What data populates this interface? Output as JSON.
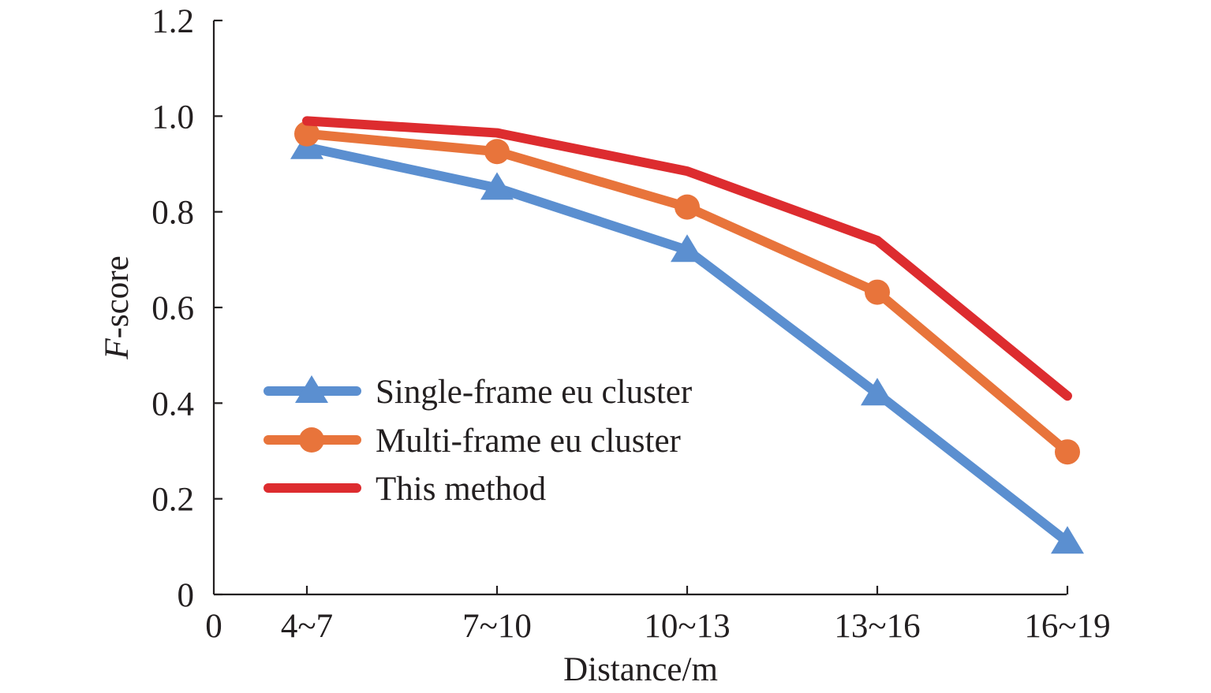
{
  "chart_data": {
    "type": "line",
    "title": "",
    "xlabel": "Distance/m",
    "ylabel_italic": "F",
    "ylabel_rest": "-score",
    "x_origin_label": "0",
    "categories": [
      "4~7",
      "7~10",
      "10~13",
      "13~16",
      "16~19"
    ],
    "ylim": [
      0,
      1.2
    ],
    "yticks": [
      "0",
      "0.2",
      "0.4",
      "0.6",
      "0.8",
      "1.0",
      "1.2"
    ],
    "grid": false,
    "legend_position": "lower-left",
    "series": [
      {
        "name": "Single-frame eu cluster",
        "values": [
          0.935,
          0.85,
          0.72,
          0.42,
          0.11
        ],
        "color": "#5b8fd0",
        "marker": "triangle"
      },
      {
        "name": "Multi-frame eu cluster",
        "values": [
          0.963,
          0.926,
          0.81,
          0.632,
          0.298
        ],
        "color": "#e8743b",
        "marker": "circle"
      },
      {
        "name": "This method",
        "values": [
          0.99,
          0.965,
          0.885,
          0.74,
          0.415
        ],
        "color": "#dd2c2f",
        "marker": "none"
      }
    ]
  }
}
